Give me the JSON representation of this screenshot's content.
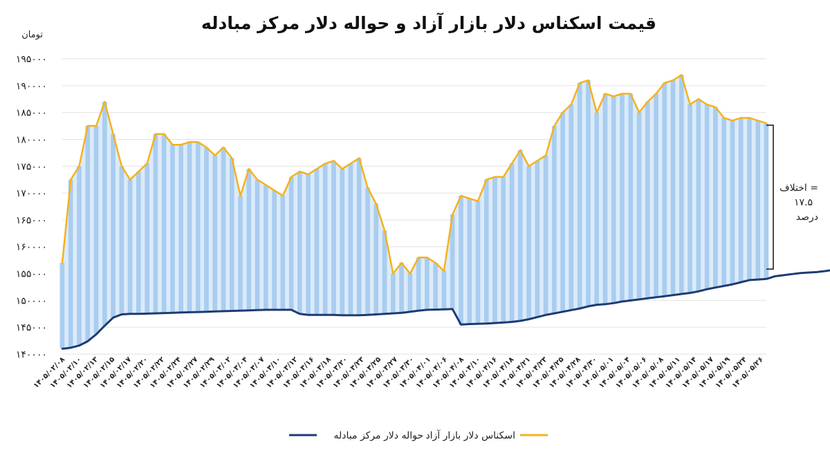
{
  "chart_data": {
    "type": "area",
    "title": "قیمت اسکناس دلار بازار آزاد و حواله دلار مرکز مبادله",
    "ylabel": "تومان",
    "ylim": [
      140000,
      195000
    ],
    "yticks": [
      140000,
      145000,
      150000,
      155000,
      160000,
      165000,
      170000,
      175000,
      180000,
      185000,
      190000,
      195000
    ],
    "ytick_labels": [
      "۱۴۰۰۰۰",
      "۱۴۵۰۰۰",
      "۱۵۰۰۰۰",
      "۱۵۵۰۰۰",
      "۱۶۰۰۰۰",
      "۱۶۵۰۰۰",
      "۱۷۰۰۰۰",
      "۱۷۵۰۰۰",
      "۱۸۰۰۰۰",
      "۱۸۵۰۰۰",
      "۱۹۰۰۰۰",
      "۱۹۵۰۰۰"
    ],
    "x_labels": [
      "۱۴۰۵/۰۲/۰۸",
      "۱۴۰۵/۰۲/۱۰",
      "۱۴۰۵/۰۲/۱۳",
      "۱۴۰۵/۰۲/۱۵",
      "۱۴۰۵/۰۲/۱۷",
      "۱۴۰۵/۰۲/۲۰",
      "۱۴۰۵/۰۲/۲۲",
      "۱۴۰۵/۰۲/۲۴",
      "۱۴۰۵/۰۲/۲۷",
      "۱۴۰۵/۰۲/۲۹",
      "۱۴۰۵/۰۳/۰۲",
      "۱۴۰۵/۰۳/۰۴",
      "۱۴۰۵/۰۳/۰۷",
      "۱۴۰۵/۰۳/۱۰",
      "۱۴۰۵/۰۳/۱۲",
      "۱۴۰۵/۰۳/۱۶",
      "۱۴۰۵/۰۳/۱۸",
      "۱۴۰۵/۰۳/۲۰",
      "۱۴۰۵/۰۳/۲۳",
      "۱۴۰۵/۰۳/۲۵",
      "۱۴۰۵/۰۳/۲۷",
      "۱۴۰۵/۰۳/۳۰",
      "۱۴۰۵/۰۴/۰۱",
      "۱۴۰۵/۰۴/۰۶",
      "۱۴۰۵/۰۴/۰۸",
      "۱۴۰۵/۰۴/۱۰",
      "۱۴۰۵/۰۴/۱۶",
      "۱۴۰۵/۰۴/۱۸",
      "۱۴۰۵/۰۴/۲۱",
      "۱۴۰۵/۰۴/۲۳",
      "۱۴۰۵/۰۴/۲۵",
      "۱۴۰۵/۰۴/۲۸",
      "۱۴۰۵/۰۴/۳۰",
      "۱۴۰۵/۰۵/۰۱",
      "۱۴۰۵/۰۵/۰۴",
      "۱۴۰۵/۰۵/۰۶",
      "۱۴۰۵/۰۵/۰۸",
      "۱۴۰۵/۰۵/۱۱",
      "۱۴۰۵/۰۵/۱۴",
      "۱۴۰۵/۰۵/۱۷",
      "۱۴۰۵/۰۵/۱۹",
      "۱۴۰۵/۰۵/۲۴",
      "۱۴۰۵/۰۵/۲۶"
    ],
    "series": [
      {
        "name": "اسکناس دلار بازار آزاد",
        "color": "#F5B21B",
        "values": [
          157000,
          172500,
          175000,
          182500,
          182500,
          187000,
          181000,
          175000,
          172500,
          174000,
          175500,
          181000,
          181000,
          179000,
          179000,
          179500,
          179500,
          178500,
          177000,
          178500,
          176500,
          169500,
          174500,
          172500,
          171500,
          170500,
          169500,
          173000,
          174000,
          173500,
          174500,
          175500,
          176000,
          174500,
          175500,
          176500,
          171000,
          168000,
          163000,
          155000,
          157000,
          155000,
          158000,
          158000,
          157000,
          155500,
          166000,
          169500,
          169000,
          168500,
          172500,
          173000,
          173000,
          175500,
          178000,
          175000,
          176000,
          177000,
          182500,
          185000,
          186500,
          190500,
          191000,
          185000,
          188500,
          188000,
          188500,
          188500,
          185000,
          187000,
          188500,
          190500,
          191000,
          192000,
          186500,
          187500,
          186500,
          186000,
          184000,
          183500,
          184000,
          184000,
          183500,
          183000
        ]
      },
      {
        "name": "حواله دلار مرکز مبادله",
        "color": "#1F3A73",
        "values": [
          141000,
          141200,
          141600,
          142400,
          143700,
          145300,
          146800,
          147400,
          147500,
          147500,
          147550,
          147600,
          147650,
          147700,
          147750,
          147800,
          147850,
          147900,
          147950,
          148000,
          148050,
          148100,
          148150,
          148200,
          148250,
          148250,
          148250,
          148250,
          147500,
          147300,
          147300,
          147300,
          147300,
          147250,
          147250,
          147250,
          147300,
          147400,
          147500,
          147600,
          147700,
          147900,
          148100,
          148250,
          148300,
          148350,
          148400,
          145500,
          145600,
          145650,
          145700,
          145800,
          145900,
          146000,
          146200,
          146500,
          146900,
          147300,
          147600,
          147900,
          148200,
          148500,
          148900,
          149200,
          149300,
          149500,
          149800,
          150000,
          150200,
          150400,
          150600,
          150800,
          151000,
          151200,
          151400,
          151700,
          152100,
          152400,
          152700,
          153000,
          153400,
          153800,
          153900,
          154000,
          154500,
          154700,
          154900,
          155100,
          155200,
          155300,
          155500,
          155700
        ]
      }
    ],
    "annotation": {
      "line1": "اختلاف =",
      "line2": "۱۷.۵",
      "line3": "درصد"
    },
    "legend_position": "bottom",
    "grid": true
  }
}
